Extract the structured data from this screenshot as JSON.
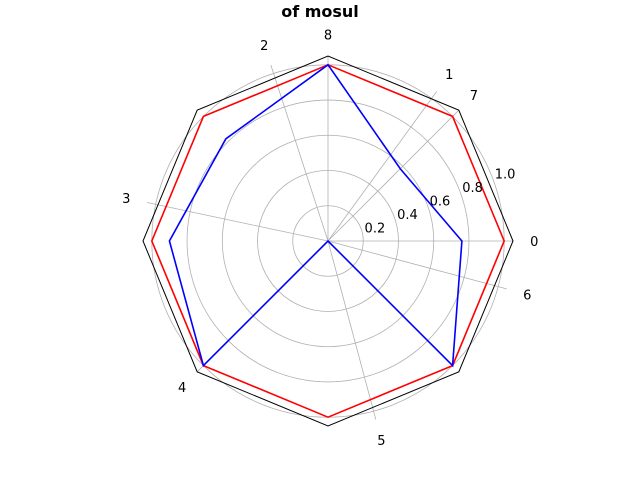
{
  "chart_data": {
    "type": "radar",
    "title": "of mosul",
    "theta_labels": [
      "0",
      "6",
      "5",
      "4",
      "3",
      "2",
      "8",
      "1",
      "7"
    ],
    "frame_labels_order_ccw": [
      "0",
      "7",
      "8",
      "3",
      "4",
      "6"
    ],
    "angular_ticks": [
      {
        "label": "0",
        "angle_deg": 0
      },
      {
        "label": "1",
        "angle_deg": 54
      },
      {
        "label": "2",
        "angle_deg": 108
      },
      {
        "label": "3",
        "angle_deg": 168
      },
      {
        "label": "4",
        "angle_deg": 225
      },
      {
        "label": "5",
        "angle_deg": 285
      },
      {
        "label": "6",
        "angle_deg": 345
      },
      {
        "label": "7",
        "angle_deg": 45
      },
      {
        "label": "8",
        "angle_deg": 90
      }
    ],
    "radial_ticks": [
      "0.2",
      "0.4",
      "0.6",
      "0.8",
      "1.0"
    ],
    "radial_tick_values": [
      0.2,
      0.4,
      0.6,
      0.8,
      1.0
    ],
    "rlim": [
      0,
      1.05
    ],
    "vertex_angles_deg": [
      0,
      45,
      90,
      135,
      180,
      225,
      270,
      315
    ],
    "series": [
      {
        "color": "#ff0000",
        "values": [
          1.0,
          1.0,
          1.0,
          1.0,
          1.0,
          1.0,
          1.0,
          1.0
        ]
      },
      {
        "color": "#0000ff",
        "values": [
          0.76,
          0.58,
          1.0,
          0.82,
          0.9,
          1.0,
          0.0,
          1.0
        ]
      }
    ],
    "grid": true
  }
}
